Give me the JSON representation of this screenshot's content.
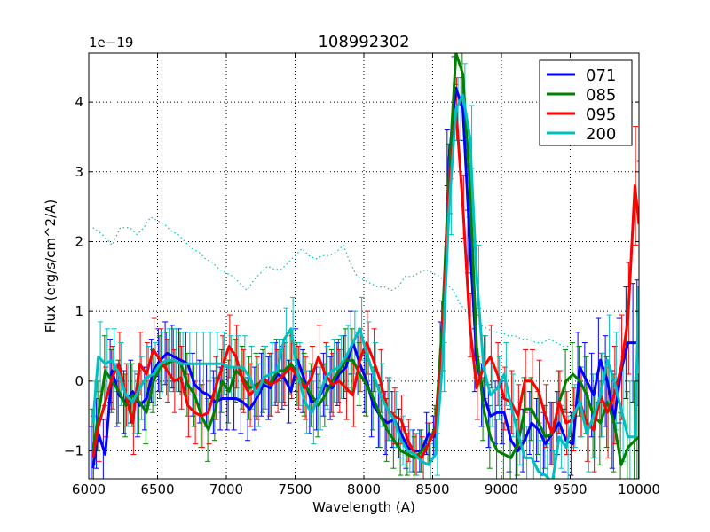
{
  "chart_data": {
    "type": "line",
    "title": "108992302",
    "xlabel": "Wavelength (A)",
    "ylabel": "Flux (erg/s/cm^2/A)",
    "y_multiplier": "1e−19",
    "xlim": [
      6000,
      10000
    ],
    "ylim": [
      -1.4,
      4.7
    ],
    "xticks": [
      6000,
      6500,
      7000,
      7500,
      8000,
      8500,
      9000,
      9500,
      10000
    ],
    "yticks": [
      -1,
      0,
      1,
      2,
      3,
      4
    ],
    "grid": true,
    "legend_position": "top-right",
    "series": [
      {
        "name": "071",
        "color": "#0000ff",
        "x": [
          6030,
          6070,
          6120,
          6170,
          6220,
          6270,
          6320,
          6370,
          6420,
          6470,
          6520,
          6570,
          6620,
          6670,
          6720,
          6770,
          6820,
          6870,
          6920,
          6970,
          7020,
          7070,
          7120,
          7170,
          7220,
          7270,
          7320,
          7370,
          7420,
          7470,
          7520,
          7570,
          7620,
          7670,
          7720,
          7770,
          7820,
          7870,
          7920,
          7970,
          8020,
          8070,
          8120,
          8170,
          8220,
          8270,
          8320,
          8370,
          8420,
          8470,
          8520,
          8570,
          8620,
          8670,
          8720,
          8770,
          8820,
          8870,
          8920,
          8970,
          9020,
          9070,
          9120,
          9170,
          9220,
          9270,
          9320,
          9370,
          9420,
          9470,
          9520,
          9570,
          9620,
          9670,
          9720,
          9770,
          9820,
          9870,
          9920,
          9970,
          10000
        ],
        "y": [
          -1.25,
          -0.75,
          -1.05,
          0.15,
          -0.2,
          -0.3,
          -0.15,
          -0.35,
          -0.25,
          0.15,
          0.3,
          0.4,
          0.35,
          0.3,
          0.25,
          -0.05,
          -0.15,
          -0.2,
          -0.3,
          -0.25,
          -0.25,
          -0.25,
          -0.3,
          -0.4,
          -0.25,
          -0.05,
          -0.1,
          0.1,
          0.05,
          -0.15,
          0.3,
          0.0,
          -0.3,
          -0.25,
          -0.05,
          -0.1,
          0.1,
          0.2,
          0.55,
          0.25,
          0.0,
          -0.35,
          -0.5,
          -0.6,
          -0.55,
          -0.75,
          -0.95,
          -1.0,
          -1.0,
          -0.75,
          -0.8,
          0.5,
          3.2,
          4.2,
          3.9,
          2.0,
          0.3,
          -0.2,
          -0.5,
          -0.45,
          -0.45,
          -0.85,
          -1.0,
          -0.85,
          -0.6,
          -0.7,
          -0.9,
          -0.75,
          -0.6,
          -0.85,
          -0.9,
          0.2,
          0.0,
          -0.2,
          0.3,
          0.0,
          -0.55,
          0.15,
          0.55,
          0.55,
          0.55
        ],
        "err": [
          0.6,
          0.5,
          0.5,
          0.45,
          0.45,
          0.45,
          0.45,
          0.45,
          0.45,
          0.45,
          0.45,
          0.45,
          0.45,
          0.45,
          0.45,
          0.45,
          0.45,
          0.45,
          0.45,
          0.45,
          0.45,
          0.45,
          0.45,
          0.45,
          0.45,
          0.45,
          0.45,
          0.45,
          0.45,
          0.45,
          0.45,
          0.45,
          0.45,
          0.45,
          0.45,
          0.45,
          0.45,
          0.45,
          0.45,
          0.45,
          0.45,
          0.45,
          0.45,
          0.45,
          0.4,
          0.35,
          0.3,
          0.3,
          0.3,
          0.3,
          0.3,
          0.35,
          0.4,
          0.45,
          0.45,
          0.45,
          0.45,
          0.45,
          0.45,
          0.45,
          0.45,
          0.45,
          0.45,
          0.45,
          0.45,
          0.45,
          0.45,
          0.45,
          0.45,
          0.45,
          0.45,
          0.5,
          0.55,
          0.6,
          0.6,
          0.65,
          0.7,
          0.75,
          0.8,
          0.85,
          0.9
        ]
      },
      {
        "name": "085",
        "color": "#008000",
        "x": [
          6030,
          6070,
          6120,
          6170,
          6220,
          6270,
          6320,
          6370,
          6420,
          6470,
          6520,
          6570,
          6620,
          6670,
          6720,
          6770,
          6820,
          6870,
          6920,
          6970,
          7020,
          7070,
          7120,
          7170,
          7220,
          7270,
          7320,
          7370,
          7420,
          7470,
          7520,
          7570,
          7620,
          7670,
          7720,
          7770,
          7820,
          7870,
          7920,
          7970,
          8020,
          8070,
          8120,
          8170,
          8220,
          8270,
          8320,
          8370,
          8420,
          8470,
          8520,
          8570,
          8620,
          8670,
          8720,
          8770,
          8820,
          8870,
          8920,
          8970,
          9020,
          9070,
          9120,
          9170,
          9220,
          9270,
          9320,
          9370,
          9420,
          9470,
          9520,
          9570,
          9620,
          9670,
          9720,
          9770,
          9820,
          9870,
          9920,
          9970,
          10000
        ],
        "y": [
          -1.0,
          -0.5,
          0.15,
          0.0,
          -0.15,
          -0.35,
          -0.2,
          -0.3,
          -0.45,
          0.0,
          0.2,
          0.25,
          0.3,
          0.25,
          -0.05,
          -0.2,
          -0.5,
          -0.7,
          -0.4,
          0.0,
          -0.15,
          0.15,
          0.05,
          -0.1,
          -0.05,
          0.0,
          -0.05,
          0.15,
          0.15,
          0.25,
          0.1,
          -0.05,
          -0.2,
          -0.35,
          -0.2,
          0.0,
          0.15,
          0.3,
          0.3,
          0.1,
          -0.05,
          -0.25,
          -0.5,
          -0.7,
          -0.85,
          -1.0,
          -1.05,
          -1.1,
          -1.0,
          -0.9,
          -0.65,
          0.8,
          3.0,
          4.7,
          4.4,
          2.8,
          0.5,
          -0.4,
          -0.8,
          -1.0,
          -1.05,
          -1.1,
          -0.9,
          -0.4,
          -0.4,
          -0.6,
          -0.8,
          -0.75,
          -0.3,
          0.0,
          0.1,
          0.0,
          -0.2,
          -0.5,
          -0.6,
          -0.3,
          -0.6,
          -1.2,
          -0.95,
          -0.85,
          -0.8
        ],
        "err": [
          0.6,
          0.5,
          0.5,
          0.45,
          0.45,
          0.45,
          0.45,
          0.45,
          0.45,
          0.45,
          0.45,
          0.45,
          0.45,
          0.45,
          0.45,
          0.45,
          0.45,
          0.45,
          0.45,
          0.45,
          0.45,
          0.45,
          0.45,
          0.45,
          0.45,
          0.45,
          0.45,
          0.45,
          0.45,
          0.45,
          0.45,
          0.45,
          0.45,
          0.45,
          0.45,
          0.45,
          0.45,
          0.45,
          0.45,
          0.45,
          0.45,
          0.45,
          0.45,
          0.45,
          0.4,
          0.35,
          0.3,
          0.3,
          0.3,
          0.3,
          0.3,
          0.35,
          0.4,
          0.45,
          0.45,
          0.45,
          0.45,
          0.45,
          0.45,
          0.45,
          0.45,
          0.45,
          0.45,
          0.45,
          0.45,
          0.45,
          0.45,
          0.45,
          0.45,
          0.45,
          0.45,
          0.5,
          0.55,
          0.6,
          0.6,
          0.65,
          0.7,
          0.75,
          0.8,
          0.85,
          0.9
        ]
      },
      {
        "name": "095",
        "color": "#ff0000",
        "x": [
          6030,
          6070,
          6120,
          6170,
          6220,
          6270,
          6320,
          6370,
          6420,
          6470,
          6520,
          6570,
          6620,
          6670,
          6720,
          6770,
          6820,
          6870,
          6920,
          6970,
          7020,
          7070,
          7120,
          7170,
          7220,
          7270,
          7320,
          7370,
          7420,
          7470,
          7520,
          7570,
          7620,
          7670,
          7720,
          7770,
          7820,
          7870,
          7920,
          7970,
          8020,
          8070,
          8120,
          8170,
          8220,
          8270,
          8320,
          8370,
          8420,
          8470,
          8520,
          8570,
          8620,
          8670,
          8720,
          8770,
          8820,
          8870,
          8920,
          8970,
          9020,
          9070,
          9120,
          9170,
          9220,
          9270,
          9320,
          9370,
          9420,
          9470,
          9520,
          9570,
          9620,
          9670,
          9720,
          9770,
          9820,
          9870,
          9920,
          9970,
          10000
        ],
        "y": [
          -1.1,
          -0.65,
          -0.3,
          0.05,
          0.25,
          -0.2,
          -0.6,
          0.25,
          0.1,
          0.45,
          0.3,
          0.15,
          0.0,
          0.05,
          -0.35,
          -0.45,
          -0.5,
          -0.45,
          -0.1,
          0.2,
          0.5,
          0.35,
          0.0,
          -0.2,
          -0.1,
          0.05,
          -0.05,
          0.0,
          0.1,
          0.2,
          0.05,
          -0.1,
          0.05,
          0.35,
          0.1,
          -0.05,
          0.0,
          -0.1,
          -0.2,
          0.3,
          0.55,
          0.3,
          0.0,
          -0.4,
          -0.5,
          -0.55,
          -0.85,
          -1.05,
          -1.1,
          -0.9,
          -0.7,
          0.5,
          2.8,
          3.9,
          2.5,
          0.8,
          -0.1,
          0.2,
          0.35,
          0.1,
          -0.25,
          -0.3,
          -0.5,
          0.0,
          0.0,
          -0.15,
          -0.5,
          -0.75,
          -0.3,
          -0.6,
          -0.55,
          -0.3,
          -0.6,
          -0.7,
          -0.2,
          -0.45,
          -0.2,
          0.2,
          0.9,
          2.8,
          2.25
        ],
        "err": [
          0.6,
          0.5,
          0.5,
          0.45,
          0.45,
          0.45,
          0.45,
          0.45,
          0.45,
          0.45,
          0.45,
          0.45,
          0.45,
          0.45,
          0.45,
          0.45,
          0.45,
          0.45,
          0.45,
          0.45,
          0.45,
          0.45,
          0.45,
          0.45,
          0.45,
          0.45,
          0.45,
          0.45,
          0.45,
          0.45,
          0.45,
          0.45,
          0.45,
          0.45,
          0.45,
          0.45,
          0.45,
          0.45,
          0.45,
          0.45,
          0.45,
          0.45,
          0.45,
          0.45,
          0.4,
          0.35,
          0.3,
          0.3,
          0.3,
          0.3,
          0.3,
          0.35,
          0.4,
          0.45,
          0.45,
          0.45,
          0.45,
          0.45,
          0.45,
          0.45,
          0.45,
          0.45,
          0.45,
          0.45,
          0.45,
          0.45,
          0.45,
          0.45,
          0.45,
          0.45,
          0.45,
          0.5,
          0.55,
          0.6,
          0.6,
          0.65,
          0.7,
          0.75,
          0.8,
          0.85,
          0.9
        ]
      },
      {
        "name": "200",
        "color": "#00bfbf",
        "x": [
          6030,
          6070,
          6120,
          6170,
          6220,
          6270,
          6320,
          6370,
          6420,
          6470,
          6520,
          6570,
          6620,
          6670,
          6720,
          6770,
          6820,
          6870,
          6920,
          6970,
          7020,
          7070,
          7120,
          7170,
          7220,
          7270,
          7320,
          7370,
          7420,
          7470,
          7520,
          7570,
          7620,
          7670,
          7720,
          7770,
          7820,
          7870,
          7920,
          7970,
          8020,
          8070,
          8120,
          8170,
          8220,
          8270,
          8320,
          8370,
          8420,
          8470,
          8520,
          8570,
          8620,
          8670,
          8720,
          8770,
          8820,
          8870,
          8920,
          8970,
          9020,
          9070,
          9120,
          9170,
          9220,
          9270,
          9320,
          9370,
          9420,
          9470,
          9520,
          9570,
          9620,
          9670,
          9720,
          9770,
          9820,
          9870,
          9920,
          9970,
          10000
        ],
        "y": [
          -0.6,
          0.35,
          0.25,
          0.3,
          0.1,
          -0.2,
          -0.3,
          -0.1,
          0.05,
          0.1,
          0.25,
          0.3,
          0.3,
          0.25,
          0.25,
          0.25,
          0.25,
          0.25,
          0.25,
          0.25,
          0.2,
          0.2,
          0.2,
          0.05,
          -0.2,
          0.05,
          0.1,
          0.15,
          0.6,
          0.75,
          0.1,
          -0.3,
          -0.45,
          -0.25,
          0.05,
          0.15,
          0.2,
          0.35,
          0.55,
          0.75,
          0.4,
          0.1,
          -0.2,
          -0.4,
          -0.55,
          -0.85,
          -1.0,
          -1.05,
          -1.15,
          -1.2,
          -1.05,
          0.2,
          2.5,
          3.9,
          4.1,
          3.5,
          1.5,
          0.2,
          -0.2,
          -0.1,
          0.1,
          -0.35,
          -0.75,
          -1.1,
          -1.1,
          -1.3,
          -1.35,
          -1.45,
          -0.8,
          -0.95,
          -0.5,
          -0.3,
          -0.75,
          -0.5,
          -0.2,
          0.3,
          0.0,
          -0.4,
          -0.8,
          -0.8,
          1.35
        ],
        "err": [
          0.6,
          0.5,
          0.5,
          0.45,
          0.45,
          0.45,
          0.45,
          0.45,
          0.45,
          0.45,
          0.45,
          0.45,
          0.45,
          0.45,
          0.45,
          0.45,
          0.45,
          0.45,
          0.45,
          0.45,
          0.45,
          0.45,
          0.45,
          0.45,
          0.45,
          0.45,
          0.45,
          0.45,
          0.45,
          0.45,
          0.45,
          0.45,
          0.45,
          0.45,
          0.45,
          0.45,
          0.45,
          0.45,
          0.45,
          0.45,
          0.45,
          0.45,
          0.45,
          0.45,
          0.4,
          0.35,
          0.3,
          0.3,
          0.3,
          0.3,
          0.3,
          0.35,
          0.4,
          0.45,
          0.45,
          0.45,
          0.45,
          0.45,
          0.45,
          0.45,
          0.45,
          0.45,
          0.45,
          0.45,
          0.45,
          0.45,
          0.45,
          0.45,
          0.45,
          0.45,
          0.45,
          0.5,
          0.55,
          0.6,
          0.6,
          0.65,
          0.7,
          0.75,
          0.8,
          0.85,
          0.9
        ]
      }
    ],
    "sky_spectrum": {
      "color": "#00bfbf",
      "style": "dotted",
      "x": [
        6030,
        6100,
        6170,
        6230,
        6300,
        6350,
        6400,
        6450,
        6500,
        6550,
        6600,
        6650,
        6700,
        6750,
        6800,
        6850,
        6900,
        6950,
        7000,
        7050,
        7100,
        7150,
        7200,
        7250,
        7300,
        7350,
        7400,
        7450,
        7500,
        7550,
        7600,
        7650,
        7700,
        7750,
        7800,
        7850,
        7900,
        7950,
        8000,
        8050,
        8100,
        8150,
        8200,
        8250,
        8300,
        8350,
        8400,
        8450,
        8500,
        8550,
        8600,
        8650,
        8700,
        8750,
        8800,
        8850,
        8900,
        8950,
        9000,
        9050,
        9100,
        9150,
        9200,
        9250,
        9300,
        9350,
        9400,
        9450,
        9500
      ],
      "y": [
        2.2,
        2.1,
        1.95,
        2.2,
        2.2,
        2.1,
        2.2,
        2.35,
        2.3,
        2.25,
        2.15,
        2.1,
        2.0,
        1.9,
        1.85,
        1.75,
        1.7,
        1.6,
        1.55,
        1.5,
        1.4,
        1.3,
        1.45,
        1.55,
        1.65,
        1.6,
        1.6,
        1.7,
        1.8,
        1.9,
        1.8,
        1.75,
        1.8,
        1.8,
        1.85,
        1.95,
        1.7,
        1.5,
        1.45,
        1.4,
        1.35,
        1.35,
        1.3,
        1.35,
        1.5,
        1.5,
        1.55,
        1.6,
        1.55,
        1.5,
        1.4,
        1.3,
        1.1,
        1.0,
        0.9,
        0.8,
        0.75,
        0.7,
        0.7,
        0.65,
        0.65,
        0.6,
        0.6,
        0.55,
        0.55,
        0.6,
        0.55,
        0.5,
        0.5
      ]
    }
  }
}
